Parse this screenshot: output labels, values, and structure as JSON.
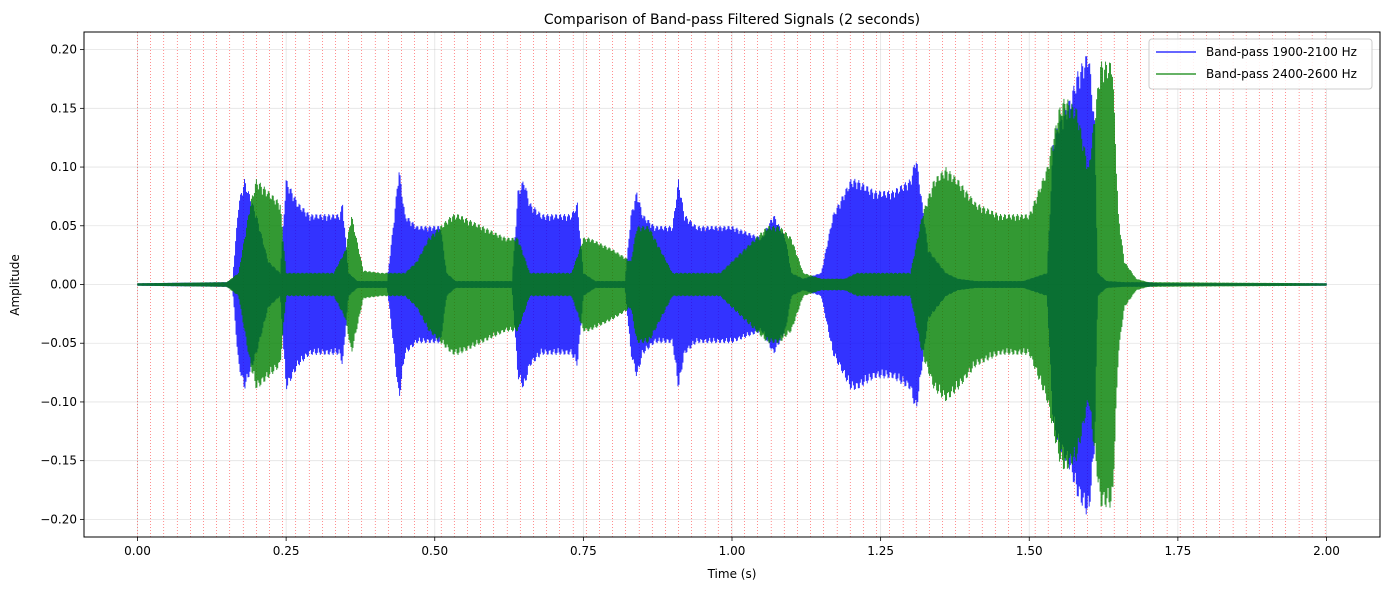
{
  "chart_data": {
    "type": "line",
    "title": "Comparison of Band-pass Filtered Signals (2 seconds)",
    "xlabel": "Time (s)",
    "ylabel": "Amplitude",
    "xlim": [
      -0.09,
      2.09
    ],
    "ylim": [
      -0.215,
      0.215
    ],
    "xticks": [
      0.0,
      0.25,
      0.5,
      0.75,
      1.0,
      1.25,
      1.5,
      1.75,
      2.0
    ],
    "xtick_labels": [
      "0.00",
      "0.25",
      "0.50",
      "0.75",
      "1.00",
      "1.25",
      "1.50",
      "1.75",
      "2.00"
    ],
    "yticks": [
      -0.2,
      -0.15,
      -0.1,
      -0.05,
      0.0,
      0.05,
      0.1,
      0.15,
      0.2
    ],
    "ytick_labels": [
      "−0.20",
      "−0.15",
      "−0.10",
      "−0.05",
      "0.00",
      "0.05",
      "0.10",
      "0.15",
      "0.20"
    ],
    "grid": true,
    "legend_position": "top-right",
    "marker_lines_color": "#ff0000",
    "marker_lines_x": [
      0.0,
      0.022,
      0.044,
      0.067,
      0.089,
      0.111,
      0.133,
      0.155,
      0.178,
      0.2,
      0.222,
      0.244,
      0.266,
      0.289,
      0.311,
      0.333,
      0.355,
      0.377,
      0.4,
      0.422,
      0.444,
      0.466,
      0.488,
      0.511,
      0.533,
      0.555,
      0.577,
      0.599,
      0.622,
      0.644,
      0.666,
      0.688,
      0.71,
      0.733,
      0.755,
      0.777,
      0.799,
      0.821,
      0.844,
      0.866,
      0.888,
      0.91,
      0.932,
      0.955,
      0.977,
      0.999,
      1.021,
      1.043,
      1.066,
      1.088,
      1.11,
      1.132,
      1.154,
      1.177,
      1.199,
      1.221,
      1.243,
      1.265,
      1.288,
      1.31,
      1.332,
      1.354,
      1.376,
      1.399,
      1.421,
      1.443,
      1.465,
      1.487,
      1.51,
      1.532,
      1.554,
      1.576,
      1.598,
      1.621,
      1.643,
      1.665,
      1.687,
      1.709,
      1.732,
      1.754,
      1.776,
      1.798,
      1.82,
      1.843,
      1.865,
      1.887,
      1.909,
      1.931,
      1.954,
      1.976,
      1.998
    ],
    "series": [
      {
        "name": "Band-pass 1900-2100 Hz",
        "color": "#0000ff",
        "envelope": {
          "t": [
            0.0,
            0.15,
            0.16,
            0.17,
            0.18,
            0.2,
            0.22,
            0.24,
            0.25,
            0.27,
            0.29,
            0.31,
            0.33,
            0.34,
            0.345,
            0.355,
            0.37,
            0.42,
            0.43,
            0.44,
            0.45,
            0.47,
            0.49,
            0.51,
            0.52,
            0.535,
            0.56,
            0.63,
            0.64,
            0.65,
            0.66,
            0.68,
            0.7,
            0.73,
            0.74,
            0.75,
            0.77,
            0.82,
            0.83,
            0.84,
            0.85,
            0.87,
            0.9,
            0.91,
            0.92,
            0.94,
            1.0,
            1.05,
            1.06,
            1.07,
            1.08,
            1.09,
            1.1,
            1.12,
            1.15,
            1.17,
            1.19,
            1.2,
            1.21,
            1.24,
            1.27,
            1.3,
            1.31,
            1.32,
            1.33,
            1.36,
            1.38,
            1.41,
            1.45,
            1.49,
            1.53,
            1.54,
            1.55,
            1.56,
            1.57,
            1.58,
            1.59,
            1.6,
            1.61,
            1.615,
            1.63,
            1.66,
            1.7,
            1.72,
            1.75,
            2.0
          ],
          "amp": [
            0.001,
            0.002,
            0.005,
            0.07,
            0.09,
            0.06,
            0.02,
            0.01,
            0.09,
            0.07,
            0.06,
            0.06,
            0.06,
            0.06,
            0.07,
            0.01,
            0.003,
            0.003,
            0.05,
            0.1,
            0.06,
            0.05,
            0.05,
            0.05,
            0.01,
            0.003,
            0.003,
            0.003,
            0.08,
            0.09,
            0.07,
            0.06,
            0.06,
            0.06,
            0.07,
            0.01,
            0.003,
            0.003,
            0.06,
            0.08,
            0.06,
            0.05,
            0.05,
            0.09,
            0.06,
            0.05,
            0.05,
            0.04,
            0.05,
            0.06,
            0.05,
            0.04,
            0.01,
            0.005,
            0.01,
            0.06,
            0.08,
            0.09,
            0.09,
            0.08,
            0.08,
            0.09,
            0.11,
            0.07,
            0.03,
            0.01,
            0.005,
            0.003,
            0.003,
            0.003,
            0.01,
            0.12,
            0.14,
            0.15,
            0.16,
            0.18,
            0.19,
            0.2,
            0.14,
            0.01,
            0.003,
            0.002,
            0.002,
            0.001,
            0.001,
            0.001
          ]
        }
      },
      {
        "name": "Band-pass 2400-2600 Hz",
        "color": "#008000",
        "envelope": {
          "t": [
            0.0,
            0.15,
            0.17,
            0.19,
            0.2,
            0.22,
            0.24,
            0.25,
            0.27,
            0.33,
            0.35,
            0.36,
            0.38,
            0.41,
            0.43,
            0.45,
            0.47,
            0.49,
            0.53,
            0.54,
            0.58,
            0.62,
            0.64,
            0.66,
            0.68,
            0.7,
            0.73,
            0.75,
            0.76,
            0.8,
            0.83,
            0.84,
            0.86,
            0.88,
            0.9,
            0.92,
            0.94,
            0.98,
            1.02,
            1.04,
            1.06,
            1.08,
            1.1,
            1.12,
            1.15,
            1.19,
            1.21,
            1.25,
            1.3,
            1.32,
            1.34,
            1.36,
            1.38,
            1.41,
            1.45,
            1.5,
            1.53,
            1.55,
            1.56,
            1.58,
            1.6,
            1.62,
            1.63,
            1.64,
            1.65,
            1.66,
            1.68,
            1.7,
            2.0
          ],
          "amp": [
            0.001,
            0.002,
            0.01,
            0.07,
            0.09,
            0.08,
            0.07,
            0.01,
            0.01,
            0.01,
            0.03,
            0.06,
            0.012,
            0.01,
            0.01,
            0.01,
            0.02,
            0.04,
            0.06,
            0.06,
            0.05,
            0.04,
            0.04,
            0.01,
            0.01,
            0.01,
            0.01,
            0.04,
            0.04,
            0.03,
            0.02,
            0.05,
            0.05,
            0.03,
            0.01,
            0.01,
            0.01,
            0.01,
            0.03,
            0.04,
            0.05,
            0.05,
            0.04,
            0.01,
            0.005,
            0.005,
            0.01,
            0.01,
            0.01,
            0.06,
            0.09,
            0.1,
            0.09,
            0.07,
            0.06,
            0.06,
            0.1,
            0.15,
            0.16,
            0.15,
            0.1,
            0.19,
            0.19,
            0.19,
            0.06,
            0.02,
            0.005,
            0.002,
            0.001
          ]
        }
      }
    ]
  }
}
